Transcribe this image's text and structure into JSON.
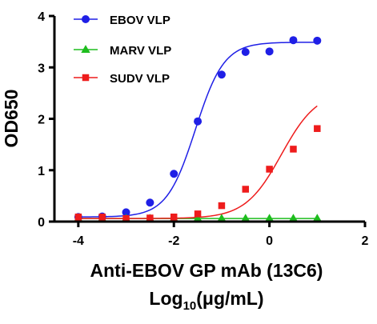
{
  "chart_data": {
    "type": "scatter",
    "title": "",
    "xlabel_line1": "Anti-EBOV GP mAb (13C6)",
    "xlabel_line2": {
      "main": "Log",
      "sub": "10",
      "tail": "(μg/mL)"
    },
    "ylabel": "OD650",
    "xlim": [
      -4.5,
      2
    ],
    "ylim": [
      0,
      4
    ],
    "xticks": [
      -4,
      -2,
      0,
      2
    ],
    "xtick_labels": [
      "-4",
      "-2",
      "0",
      "2"
    ],
    "yticks": [
      0,
      1,
      2,
      3,
      4
    ],
    "ytick_labels": [
      "0",
      "1",
      "2",
      "3",
      "4"
    ],
    "grid": false,
    "legend_position": "top-left",
    "series": [
      {
        "name": "EBOV VLP",
        "color": "#1f1fe6",
        "marker": "circle",
        "fit": "sigmoid",
        "x": [
          -4.0,
          -3.5,
          -3.0,
          -2.5,
          -2.0,
          -1.5,
          -1.0,
          -0.5,
          0.0,
          0.5,
          1.0
        ],
        "y": [
          0.09,
          0.1,
          0.18,
          0.37,
          0.93,
          1.95,
          2.86,
          3.3,
          3.31,
          3.53,
          3.52
        ]
      },
      {
        "name": "MARV VLP",
        "color": "#1ebd1e",
        "marker": "triangle",
        "fit": "flat",
        "x": [
          -4.0,
          -3.5,
          -3.0,
          -2.5,
          -2.0,
          -1.5,
          -1.0,
          -0.5,
          0.0,
          0.5,
          1.0
        ],
        "y": [
          0.06,
          0.06,
          0.06,
          0.06,
          0.06,
          0.06,
          0.06,
          0.06,
          0.06,
          0.06,
          0.06
        ]
      },
      {
        "name": "SUDV VLP",
        "color": "#ee1c1c",
        "marker": "square",
        "fit": "sigmoid",
        "x": [
          -4.0,
          -3.5,
          -3.0,
          -2.5,
          -2.0,
          -1.5,
          -1.0,
          -0.5,
          0.0,
          0.5,
          1.0
        ],
        "y": [
          0.09,
          0.09,
          0.06,
          0.07,
          0.09,
          0.15,
          0.31,
          0.63,
          1.02,
          1.41,
          1.81
        ]
      }
    ]
  }
}
